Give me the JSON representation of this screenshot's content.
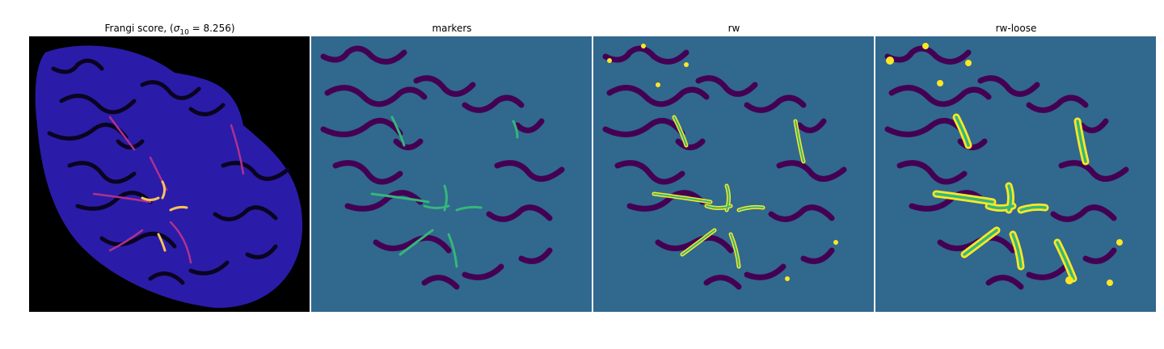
{
  "figure": {
    "panels": [
      {
        "title_prefix": "Frangi score, (",
        "title_sigma": "σ",
        "title_sub": "10",
        "title_suffix": " = 8.256)"
      },
      {
        "title": "markers"
      },
      {
        "title": "rw"
      },
      {
        "title": "rw-loose"
      }
    ],
    "colors": {
      "background_black": "#000000",
      "background_teal": "#31688e",
      "region_purple": "#440154",
      "marker_green": "#35b779",
      "highlight_yellow": "#fde725",
      "frangi_blue": "#2a1ca8",
      "frangi_hot": "#f6c35a"
    }
  }
}
